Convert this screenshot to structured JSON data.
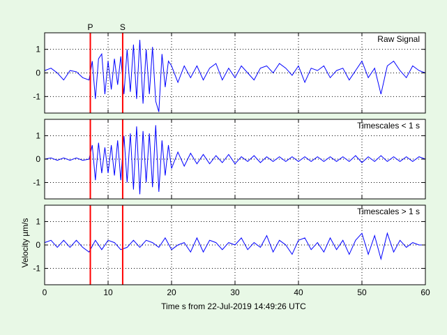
{
  "figure": {
    "background": "#e8f8e6",
    "signal_color": "#0000ff",
    "marker_color": "#ff0000",
    "xlabel": "Time s from 22-Jul-2019 14:49:26 UTC",
    "ylabel": "Velocity µm/s",
    "grid": "dotted"
  },
  "chart_data": [
    {
      "type": "line",
      "title": "Raw Signal",
      "xlim": [
        0,
        60
      ],
      "ylim": [
        -1.7,
        1.7
      ],
      "xticks": [
        0,
        10,
        20,
        30,
        40,
        50,
        60
      ],
      "yticks": [
        -1,
        0,
        1
      ],
      "phase_markers": [
        {
          "label": "P",
          "x": 7.2
        },
        {
          "label": "S",
          "x": 12.3
        }
      ],
      "series": [
        {
          "x": [
            0,
            1,
            2,
            3,
            4,
            5,
            6,
            7,
            7.5,
            8,
            8.5,
            9,
            9.5,
            10,
            10.5,
            11,
            11.5,
            12,
            12.5,
            13,
            13.5,
            14,
            14.5,
            15,
            15.5,
            16,
            16.5,
            17,
            17.5,
            18,
            18.5,
            19,
            19.5,
            20,
            21,
            22,
            23,
            24,
            25,
            26,
            27,
            28,
            29,
            30,
            31,
            32,
            33,
            34,
            35,
            36,
            37,
            38,
            39,
            40,
            41,
            42,
            43,
            44,
            45,
            46,
            47,
            48,
            49,
            50,
            51,
            52,
            53,
            54,
            55,
            56,
            57,
            58,
            59,
            60
          ],
          "y": [
            0.1,
            0.2,
            0,
            -0.3,
            0.1,
            0.05,
            -0.2,
            -0.3,
            0.5,
            -1.1,
            0.6,
            0.8,
            -0.9,
            0.5,
            -0.7,
            0.6,
            -0.5,
            0.7,
            -0.9,
            1.0,
            -0.8,
            1.2,
            -1.1,
            1.4,
            -1.3,
            1.0,
            -0.9,
            1.1,
            -1.2,
            -1.65,
            0.8,
            -0.6,
            0.5,
            0.3,
            -0.4,
            0.3,
            -0.2,
            0.3,
            -0.3,
            0.2,
            0.4,
            -0.3,
            0.2,
            -0.2,
            0.3,
            0,
            -0.3,
            0.2,
            0.3,
            0,
            0.4,
            0.2,
            -0.1,
            0.3,
            -0.4,
            0.2,
            0.1,
            0.3,
            -0.2,
            0.1,
            0.2,
            -0.3,
            0.1,
            0.5,
            -0.2,
            0.2,
            -0.9,
            0.3,
            0.5,
            0.1,
            -0.2,
            0.3,
            0.1,
            0
          ]
        }
      ]
    },
    {
      "type": "line",
      "title": "Timescales < 1 s",
      "xlim": [
        0,
        60
      ],
      "ylim": [
        -1.7,
        1.7
      ],
      "xticks": [
        0,
        10,
        20,
        30,
        40,
        50,
        60
      ],
      "yticks": [
        -1,
        0,
        1
      ],
      "phase_markers": [
        {
          "label": "",
          "x": 7.2
        },
        {
          "label": "",
          "x": 12.3
        }
      ],
      "series": [
        {
          "x": [
            0,
            1,
            2,
            3,
            4,
            5,
            6,
            7,
            7.5,
            8,
            8.5,
            9,
            9.5,
            10,
            10.5,
            11,
            11.5,
            12,
            12.5,
            13,
            13.5,
            14,
            14.5,
            15,
            15.5,
            16,
            16.5,
            17,
            17.5,
            18,
            18.5,
            19,
            19.5,
            20,
            21,
            22,
            23,
            24,
            25,
            26,
            27,
            28,
            29,
            30,
            31,
            32,
            33,
            34,
            35,
            36,
            37,
            38,
            39,
            40,
            41,
            42,
            43,
            44,
            45,
            46,
            47,
            48,
            49,
            50,
            51,
            52,
            53,
            54,
            55,
            56,
            57,
            58,
            59,
            60
          ],
          "y": [
            0,
            0.05,
            -0.05,
            0.05,
            -0.05,
            0.05,
            -0.05,
            0,
            0.6,
            -0.9,
            0.7,
            -0.6,
            0.5,
            -0.6,
            0.6,
            -0.7,
            0.8,
            -0.9,
            1.0,
            -1.0,
            1.1,
            -1.3,
            1.4,
            -1.5,
            1.2,
            -1.0,
            1.1,
            -1.2,
            1.45,
            -1.4,
            0.8,
            -0.7,
            0.6,
            -0.4,
            0.3,
            -0.3,
            0.25,
            -0.2,
            0.2,
            -0.2,
            0.15,
            -0.15,
            0.2,
            -0.2,
            0.1,
            -0.1,
            0.15,
            -0.15,
            0.1,
            -0.1,
            0.1,
            -0.1,
            0.1,
            -0.1,
            0.1,
            -0.1,
            0.1,
            -0.1,
            0.1,
            -0.1,
            0.1,
            -0.1,
            0.15,
            -0.15,
            0.1,
            -0.1,
            0.15,
            -0.1,
            0.1,
            -0.1,
            0.1,
            -0.1,
            0.1,
            0
          ]
        }
      ]
    },
    {
      "type": "line",
      "title": "Timescales > 1 s",
      "xlim": [
        0,
        60
      ],
      "ylim": [
        -1.7,
        1.7
      ],
      "xticks": [
        0,
        10,
        20,
        30,
        40,
        50,
        60
      ],
      "yticks": [
        -1,
        0,
        1
      ],
      "phase_markers": [
        {
          "label": "",
          "x": 7.2
        },
        {
          "label": "",
          "x": 12.3
        }
      ],
      "series": [
        {
          "x": [
            0,
            1,
            2,
            3,
            4,
            5,
            6,
            7,
            8,
            9,
            10,
            11,
            12,
            13,
            14,
            15,
            16,
            17,
            18,
            19,
            20,
            21,
            22,
            23,
            24,
            25,
            26,
            27,
            28,
            29,
            30,
            31,
            32,
            33,
            34,
            35,
            36,
            37,
            38,
            39,
            40,
            41,
            42,
            43,
            44,
            45,
            46,
            47,
            48,
            49,
            50,
            51,
            52,
            53,
            54,
            55,
            56,
            57,
            58,
            59,
            60
          ],
          "y": [
            0.1,
            0.2,
            -0.1,
            0.2,
            -0.1,
            0.2,
            -0.1,
            -0.3,
            0.2,
            -0.2,
            0.2,
            0.1,
            -0.2,
            -0.1,
            0.2,
            -0.1,
            0.2,
            0.1,
            -0.1,
            0.3,
            -0.2,
            0,
            0.1,
            -0.3,
            0.3,
            -0.3,
            0.2,
            0.1,
            -0.2,
            0.1,
            0,
            0.3,
            -0.2,
            0.1,
            -0.1,
            0.4,
            -0.3,
            0.2,
            0,
            -0.4,
            0.2,
            0.3,
            -0.2,
            0.1,
            -0.3,
            0.3,
            -0.2,
            0.2,
            -0.4,
            0.2,
            0.5,
            -0.4,
            0.4,
            -0.6,
            0.5,
            -0.3,
            0.2,
            -0.1,
            0.1,
            0,
            0
          ]
        }
      ]
    }
  ]
}
